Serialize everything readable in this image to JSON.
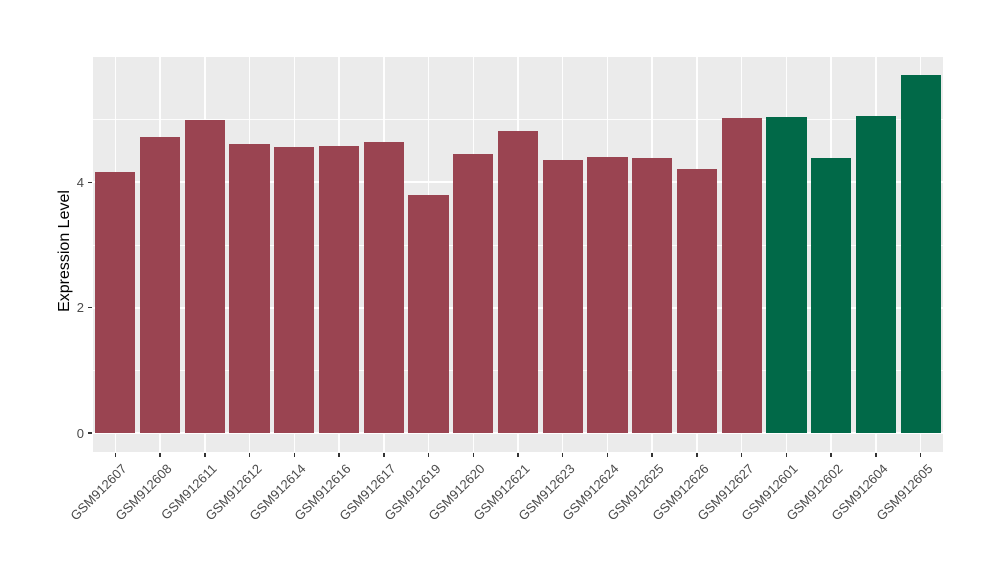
{
  "figure": {
    "background": "#FFFFFF",
    "panel_bg": "#EBEBEB",
    "grid_color": "#FFFFFF"
  },
  "chart_data": {
    "type": "bar",
    "title": "",
    "xlabel": "",
    "ylabel": "Expression Level",
    "categories": [
      "GSM912607",
      "GSM912608",
      "GSM912611",
      "GSM912612",
      "GSM912614",
      "GSM912616",
      "GSM912617",
      "GSM912619",
      "GSM912620",
      "GSM912621",
      "GSM912623",
      "GSM912624",
      "GSM912625",
      "GSM912626",
      "GSM912627",
      "GSM912601",
      "GSM912602",
      "GSM912604",
      "GSM912605"
    ],
    "values": [
      4.17,
      4.72,
      5.0,
      4.61,
      4.57,
      4.58,
      4.65,
      3.8,
      4.45,
      4.82,
      4.35,
      4.41,
      4.39,
      4.22,
      5.02,
      5.04,
      4.39,
      5.06,
      5.72
    ],
    "bar_groups": [
      "maroon",
      "maroon",
      "maroon",
      "maroon",
      "maroon",
      "maroon",
      "maroon",
      "maroon",
      "maroon",
      "maroon",
      "maroon",
      "maroon",
      "maroon",
      "maroon",
      "maroon",
      "green",
      "green",
      "green",
      "green"
    ],
    "group_colors": {
      "maroon": "#9A4451",
      "green": "#016948"
    },
    "yticks": [
      0,
      2,
      4
    ],
    "minor_gridlines": [
      1,
      3,
      5
    ],
    "ylim": [
      0,
      6.0
    ],
    "bar_rel_width": 0.9,
    "grid": true,
    "legend": "none",
    "x_tick_label_rotation_deg": 45
  }
}
